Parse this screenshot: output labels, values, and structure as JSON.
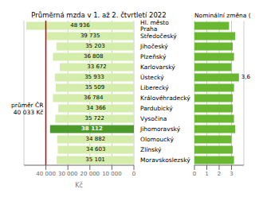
{
  "chart_data": [
    {
      "type": "bar",
      "orientation": "horizontal",
      "title": "Průměrná mzda v 1. až 2. čtvrtletí 2022",
      "xlabel": "Kč",
      "categories": [
        "Hl. město Praha",
        "Středočeský",
        "Jihočeský",
        "Plzeňský",
        "Karlovarský",
        "Ústecký",
        "Liberecký",
        "Královéhradecký",
        "Pardubický",
        "Vysočina",
        "Jihomoravský",
        "Olomoucký",
        "Zlínský",
        "Moravskoslezský"
      ],
      "values": [
        48936,
        39735,
        35203,
        36808,
        33672,
        35933,
        35509,
        36784,
        34366,
        35722,
        38112,
        34882,
        34603,
        35101
      ],
      "value_labels": [
        "48 936",
        "39 735",
        "35 203",
        "36 808",
        "33 672",
        "35 933",
        "35 509",
        "36 784",
        "34 366",
        "35 722",
        "38 112",
        "34 882",
        "34 603",
        "35 101"
      ],
      "data_labels": true,
      "colors": [
        "#d4edaa",
        "#d4edaa",
        "#d4edaa",
        "#d4edaa",
        "#d4edaa",
        "#d4edaa",
        "#d4edaa",
        "#d4edaa",
        "#d4edaa",
        "#d4edaa",
        "#4c9a2a",
        "#d4edaa",
        "#d4edaa",
        "#d4edaa"
      ],
      "xlim": [
        50000,
        0
      ],
      "xticks": [
        {
          "value": 40000,
          "label": "40 000"
        },
        {
          "value": 30000,
          "label": "30 000"
        },
        {
          "value": 20000,
          "label": "20 000"
        },
        {
          "value": 10000,
          "label": "10 000"
        },
        0
      ],
      "grid": true,
      "reference_line": {
        "value": 40033,
        "labels": [
          "průměr ČR",
          "40 033 Kč"
        ],
        "color": "#cc0000"
      }
    },
    {
      "type": "bar",
      "orientation": "horizontal",
      "title": "Nominální změna (",
      "categories": [
        "Hl. město Praha",
        "Středočeský",
        "Jihočeský",
        "Plzeňský",
        "Karlovarský",
        "Ústecký",
        "Liberecký",
        "Královéhradecký",
        "Pardubický",
        "Vysočina",
        "Jihomoravský",
        "Olomoucký",
        "Zlínský",
        "Moravskoslezský"
      ],
      "values": [
        2.8,
        3.3,
        3.1,
        3.2,
        3.0,
        3.6,
        3.2,
        3.1,
        3.1,
        3.2,
        3.3,
        3.0,
        3.1,
        3.2
      ],
      "color": "#6ab830",
      "xlim": [
        0,
        4
      ],
      "xticks": [
        0,
        1,
        2,
        3
      ],
      "grid": true,
      "annotations": [
        {
          "category": "Ústecký",
          "text": "3,6"
        }
      ]
    }
  ]
}
